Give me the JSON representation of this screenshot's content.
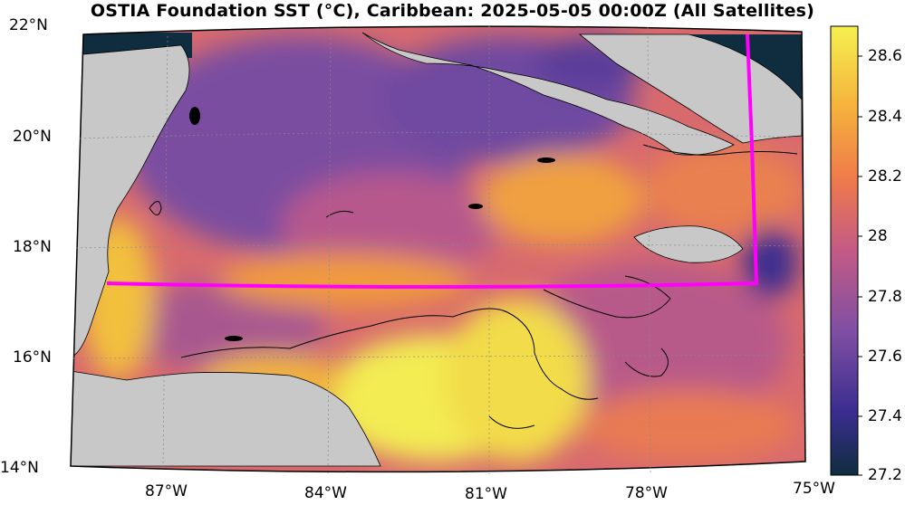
{
  "title": "OSTIA Foundation SST (°C), Caribbean: 2025-05-05 00:00Z (All Satellites)",
  "lat_labels": [
    "22°N",
    "20°N",
    "18°N",
    "16°N",
    "14°N"
  ],
  "lon_labels": [
    "87°W",
    "84°W",
    "81°W",
    "78°W",
    "75°W"
  ],
  "colorbar": {
    "ticks": [
      "28.6",
      "28.4",
      "28.2",
      "28",
      "27.8",
      "27.6",
      "27.4",
      "27.2"
    ],
    "min": 27.2,
    "max": 28.7,
    "colors": [
      "#0f2d3f",
      "#3a2d8f",
      "#7f4fa3",
      "#c35a86",
      "#ef7a4a",
      "#f5b23c",
      "#f5f050"
    ]
  },
  "map": {
    "land_color": "#c8c8c8",
    "box_color": "#ff00ff"
  }
}
